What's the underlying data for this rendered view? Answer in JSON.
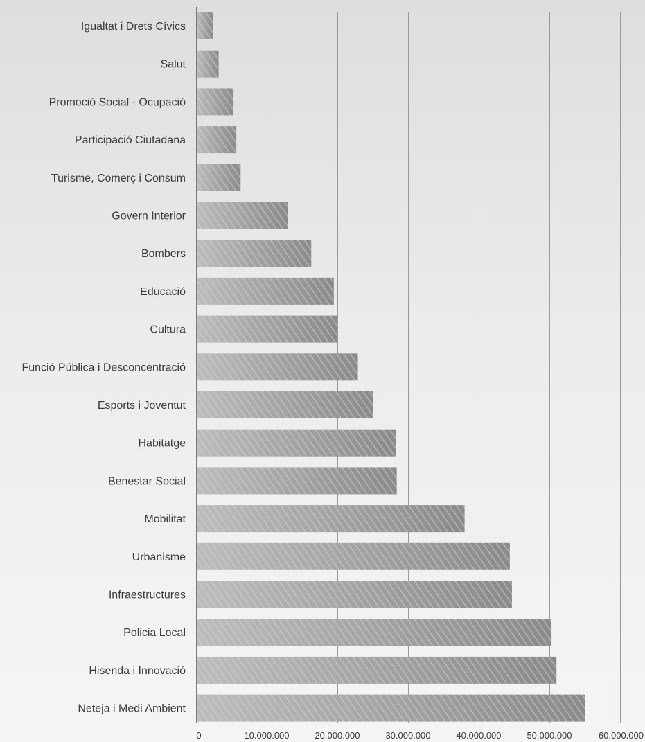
{
  "chart_data": {
    "type": "bar",
    "orientation": "horizontal",
    "categories": [
      "Igualtat i Drets Cívics",
      "Salut",
      "Promoció Social - Ocupació",
      "Participació Ciutadana",
      "Turisme, Comerç i Consum",
      "Govern Interior",
      "Bombers",
      "Educació",
      "Cultura",
      "Funció Pública i Desconcentració",
      "Esports i Joventut",
      "Habitatge",
      "Benestar Social",
      "Mobilitat",
      "Urbanisme",
      "Infraestructures",
      "Policia Local",
      "Hisenda i Innovació",
      "Neteja i Medi Ambient"
    ],
    "values": [
      2400000,
      3200000,
      5300000,
      5700000,
      6300000,
      13000000,
      16300000,
      19500000,
      20000000,
      22900000,
      25000000,
      28300000,
      28400000,
      38000000,
      44400000,
      44700000,
      50300000,
      51000000,
      55000000
    ],
    "xlim": [
      0,
      60000000
    ],
    "ticks": [
      0,
      10000000,
      20000000,
      30000000,
      40000000,
      50000000,
      60000000
    ],
    "tick_labels": [
      "0",
      "10.000.000",
      "20.000.000",
      "30.000.000",
      "40.000.000",
      "50.000.000",
      "60.000.000"
    ],
    "title": "",
    "xlabel": "",
    "ylabel": "",
    "grid": true,
    "legend": "none",
    "colors": {
      "bar_light": "#bdbdbd",
      "bar_dark": "#8a8a8a",
      "hatch": "#d2d2d2",
      "grid": "#9a9a9a"
    }
  }
}
